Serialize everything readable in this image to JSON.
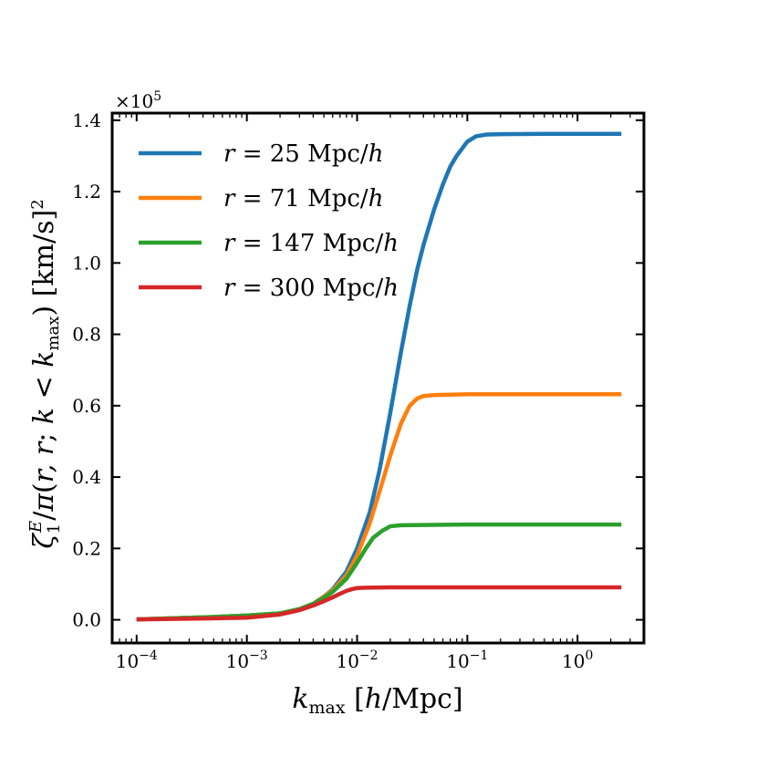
{
  "chart_data": {
    "type": "line",
    "title": "",
    "xlabel": "k_max [h/Mpc]",
    "ylabel": "ζ1^E/π(r, r; k < k_max) [km/s]^2",
    "xscale": "log",
    "xlim": [
      6e-05,
      4
    ],
    "ylim": [
      -0.065,
      1.42
    ],
    "y_offset_label": "×10^5",
    "x_ticks": [
      {
        "value": 0.0001,
        "base": "10",
        "exp": "−4"
      },
      {
        "value": 0.001,
        "base": "10",
        "exp": "−3"
      },
      {
        "value": 0.01,
        "base": "10",
        "exp": "−2"
      },
      {
        "value": 0.1,
        "base": "10",
        "exp": "−1"
      },
      {
        "value": 1,
        "base": "10",
        "exp": "0"
      }
    ],
    "y_ticks": [
      "0.0",
      "0.2",
      "0.4",
      "0.6",
      "0.8",
      "1.0",
      "1.2",
      "1.4"
    ],
    "legend_position": "upper-left",
    "series": [
      {
        "name": "r = 25 Mpc/h",
        "legend_r": "25",
        "color": "#1f77b4",
        "points": [
          [
            0.0001,
            0.001
          ],
          [
            0.0005,
            0.008
          ],
          [
            0.001,
            0.012
          ],
          [
            0.002,
            0.018
          ],
          [
            0.003,
            0.03
          ],
          [
            0.004,
            0.045
          ],
          [
            0.005,
            0.065
          ],
          [
            0.006,
            0.085
          ],
          [
            0.008,
            0.135
          ],
          [
            0.01,
            0.2
          ],
          [
            0.013,
            0.3
          ],
          [
            0.016,
            0.42
          ],
          [
            0.02,
            0.58
          ],
          [
            0.025,
            0.75
          ],
          [
            0.03,
            0.88
          ],
          [
            0.035,
            0.98
          ],
          [
            0.04,
            1.05
          ],
          [
            0.05,
            1.15
          ],
          [
            0.06,
            1.22
          ],
          [
            0.07,
            1.27
          ],
          [
            0.08,
            1.3
          ],
          [
            0.1,
            1.34
          ],
          [
            0.12,
            1.355
          ],
          [
            0.15,
            1.36
          ],
          [
            0.2,
            1.361
          ],
          [
            0.5,
            1.362
          ],
          [
            1.0,
            1.362
          ],
          [
            2.5,
            1.362
          ]
        ]
      },
      {
        "name": "r = 71 Mpc/h",
        "legend_r": "71",
        "color": "#ff7f0e",
        "points": [
          [
            0.0001,
            0.001
          ],
          [
            0.0005,
            0.008
          ],
          [
            0.001,
            0.012
          ],
          [
            0.002,
            0.018
          ],
          [
            0.003,
            0.03
          ],
          [
            0.004,
            0.045
          ],
          [
            0.005,
            0.065
          ],
          [
            0.006,
            0.082
          ],
          [
            0.008,
            0.125
          ],
          [
            0.01,
            0.18
          ],
          [
            0.013,
            0.27
          ],
          [
            0.016,
            0.36
          ],
          [
            0.02,
            0.46
          ],
          [
            0.025,
            0.55
          ],
          [
            0.03,
            0.6
          ],
          [
            0.035,
            0.62
          ],
          [
            0.04,
            0.627
          ],
          [
            0.05,
            0.63
          ],
          [
            0.07,
            0.631
          ],
          [
            0.1,
            0.632
          ],
          [
            0.5,
            0.632
          ],
          [
            1.0,
            0.632
          ],
          [
            2.5,
            0.632
          ]
        ]
      },
      {
        "name": "r = 147 Mpc/h",
        "legend_r": "147",
        "color": "#2ca02c",
        "points": [
          [
            0.0001,
            0.001
          ],
          [
            0.0005,
            0.008
          ],
          [
            0.001,
            0.012
          ],
          [
            0.002,
            0.018
          ],
          [
            0.003,
            0.03
          ],
          [
            0.004,
            0.045
          ],
          [
            0.005,
            0.062
          ],
          [
            0.006,
            0.078
          ],
          [
            0.008,
            0.115
          ],
          [
            0.01,
            0.16
          ],
          [
            0.012,
            0.2
          ],
          [
            0.014,
            0.23
          ],
          [
            0.017,
            0.25
          ],
          [
            0.02,
            0.262
          ],
          [
            0.025,
            0.265
          ],
          [
            0.05,
            0.266
          ],
          [
            0.1,
            0.267
          ],
          [
            0.5,
            0.267
          ],
          [
            1.0,
            0.267
          ],
          [
            2.5,
            0.267
          ]
        ]
      },
      {
        "name": "r = 300 Mpc/h",
        "legend_r": "300",
        "color": "#d62728",
        "points": [
          [
            0.0001,
            0.001
          ],
          [
            0.0005,
            0.004
          ],
          [
            0.001,
            0.006
          ],
          [
            0.002,
            0.015
          ],
          [
            0.003,
            0.027
          ],
          [
            0.004,
            0.04
          ],
          [
            0.005,
            0.052
          ],
          [
            0.006,
            0.063
          ],
          [
            0.007,
            0.073
          ],
          [
            0.008,
            0.081
          ],
          [
            0.009,
            0.086
          ],
          [
            0.01,
            0.089
          ],
          [
            0.012,
            0.09
          ],
          [
            0.02,
            0.091
          ],
          [
            0.1,
            0.091
          ],
          [
            1.0,
            0.091
          ],
          [
            2.5,
            0.091
          ]
        ]
      }
    ]
  }
}
